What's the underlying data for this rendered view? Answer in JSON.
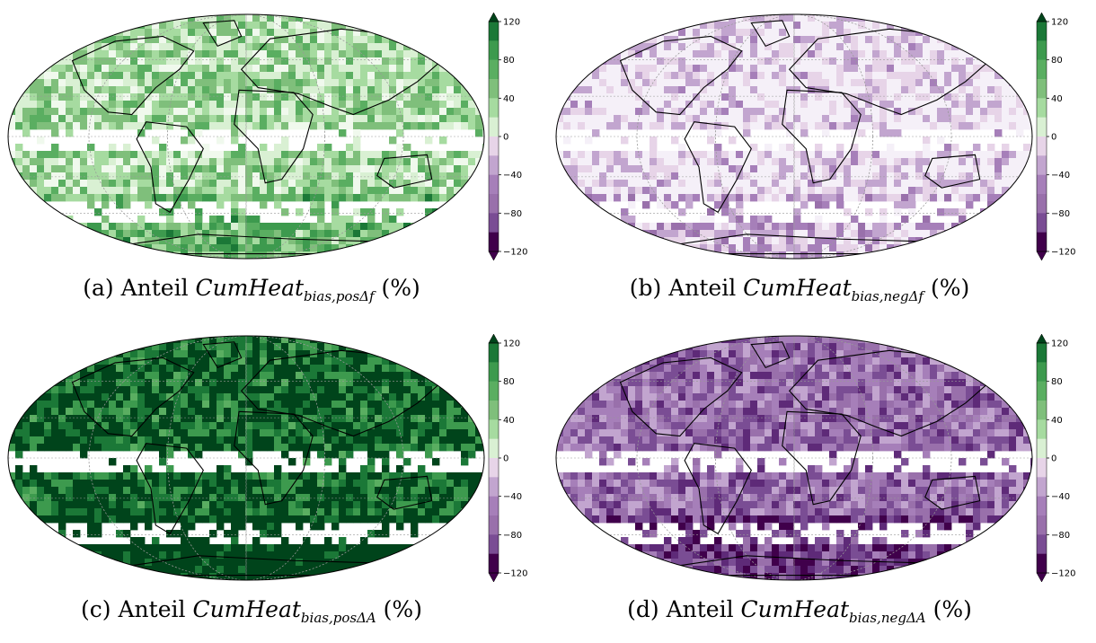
{
  "panels": [
    {
      "id": "a",
      "caption_prefix": "(a) Anteil ",
      "caption_math": "CumHeat",
      "caption_sub": "bias,posΔf",
      "caption_suffix": " (%)",
      "colormap": "green",
      "intensity": 0.32,
      "ocean_band_white": true
    },
    {
      "id": "b",
      "caption_prefix": "(b) Anteil ",
      "caption_math": "CumHeat",
      "caption_sub": "bias,negΔf",
      "caption_suffix": " (%)",
      "colormap": "purple",
      "intensity": 0.12,
      "ocean_band_white": true
    },
    {
      "id": "c",
      "caption_prefix": "(c) Anteil ",
      "caption_math": "CumHeat",
      "caption_sub": "bias,posΔA",
      "caption_suffix": " (%)",
      "colormap": "green",
      "intensity": 0.88,
      "ocean_band_white": true
    },
    {
      "id": "d",
      "caption_prefix": "(d) Anteil ",
      "caption_math": "CumHeat",
      "caption_sub": "bias,negΔA",
      "caption_suffix": " (%)",
      "colormap": "purple",
      "intensity": 0.55,
      "ocean_band_white": true
    }
  ],
  "colorbar": {
    "ticks": [
      "120",
      "80",
      "40",
      "0",
      "−40",
      "−80",
      "−120"
    ],
    "green_colors": [
      "#00441b",
      "#1b7837",
      "#3d9a4e",
      "#5aae61",
      "#7fbf7b",
      "#a6dba0",
      "#d9f0d3",
      "#f0f9ed"
    ],
    "purple_colors": [
      "#f5f0f8",
      "#e7d4e8",
      "#c2a5cf",
      "#a67fb9",
      "#9970ab",
      "#7a4d94",
      "#5e2a78",
      "#40004b"
    ]
  }
}
